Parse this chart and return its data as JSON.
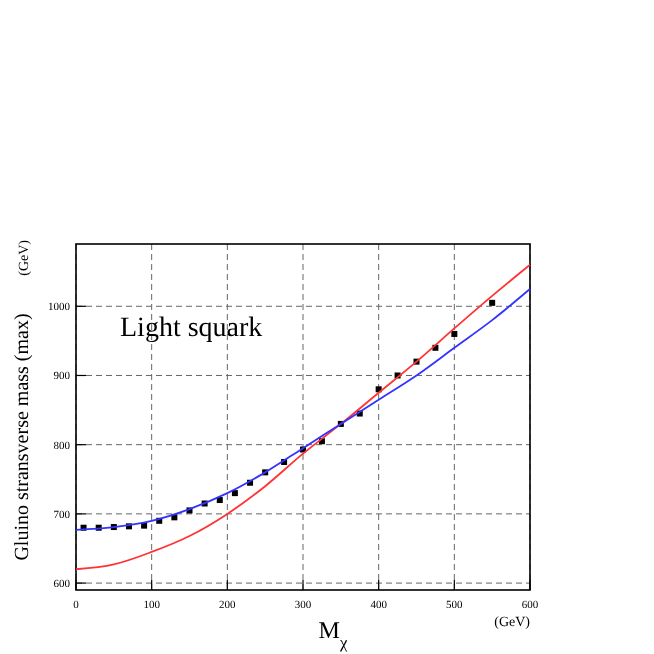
{
  "chart_data": {
    "type": "scatter",
    "xlabel": "M$_{χ}$",
    "ylabel": "Gluino stransverse mass (max)",
    "annotations": [
      "Light squark",
      "(GeV)",
      "(GeV)"
    ],
    "xlim": [
      0,
      600
    ],
    "ylim": [
      590,
      1090
    ],
    "xticks": [
      0,
      100,
      200,
      300,
      400,
      500,
      600
    ],
    "yticks": [
      600,
      700,
      800,
      900,
      1000
    ],
    "grid": true,
    "series": [
      {
        "color": "#000000",
        "marker": "square",
        "x": [
          10,
          30,
          50,
          70,
          90,
          110,
          130,
          150,
          170,
          190,
          210,
          230,
          250,
          275,
          300,
          325,
          350,
          375,
          400,
          425,
          450,
          475,
          500,
          550
        ],
        "values": [
          680,
          680,
          681,
          682,
          683,
          690,
          695,
          705,
          715,
          720,
          730,
          745,
          760,
          775,
          793,
          805,
          830,
          845,
          880,
          900,
          920,
          940,
          960,
          1005
        ]
      },
      {
        "type": "line",
        "color": "#ff3333",
        "x": [
          0,
          50,
          100,
          150,
          200,
          250,
          300,
          350,
          400,
          450,
          500,
          550,
          600
        ],
        "values": [
          620,
          627,
          645,
          668,
          700,
          740,
          787,
          830,
          875,
          920,
          968,
          1015,
          1060
        ]
      },
      {
        "type": "line",
        "color": "#3333ff",
        "x": [
          0,
          50,
          100,
          150,
          200,
          250,
          300,
          350,
          400,
          450,
          500,
          550,
          600
        ],
        "values": [
          677,
          681,
          690,
          707,
          730,
          760,
          795,
          830,
          865,
          900,
          940,
          980,
          1025
        ]
      }
    ]
  }
}
